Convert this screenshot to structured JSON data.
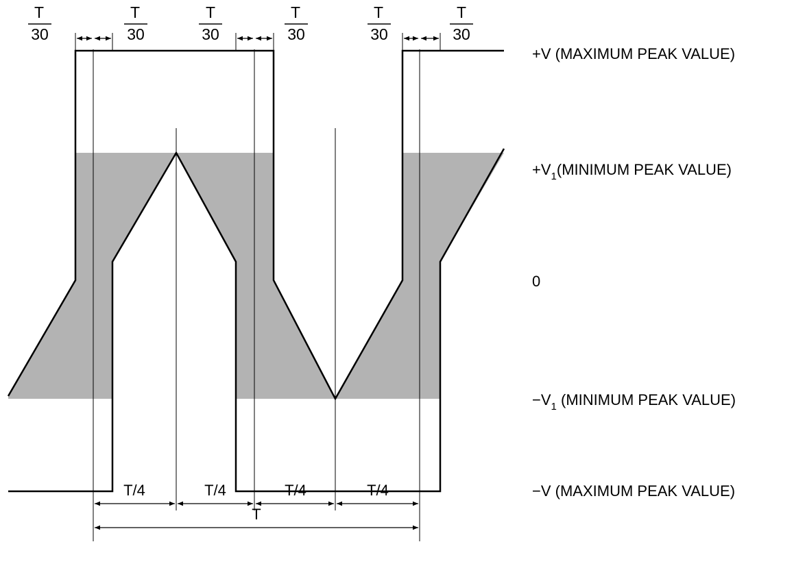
{
  "diagram": {
    "fraction_labels": [
      {
        "numerator": "T",
        "denominator": "30"
      },
      {
        "numerator": "T",
        "denominator": "30"
      },
      {
        "numerator": "T",
        "denominator": "30"
      },
      {
        "numerator": "T",
        "denominator": "30"
      },
      {
        "numerator": "T",
        "denominator": "30"
      },
      {
        "numerator": "T",
        "denominator": "30"
      }
    ],
    "levels": {
      "pos_max": "+V (MAXIMUM PEAK VALUE)",
      "pos_min_prefix": "+V",
      "pos_min_sub": "1",
      "pos_min_suffix": "(MINIMUM PEAK VALUE)",
      "zero": "0",
      "neg_min_prefix": "−V",
      "neg_min_sub": "1",
      "neg_min_suffix": " (MINIMUM PEAK VALUE)",
      "neg_max": "−V (MAXIMUM PEAK VALUE)"
    },
    "quarter_labels": [
      "T/4",
      "T/4",
      "T/4",
      "T/4"
    ],
    "period_label": "T",
    "colors": {
      "line": "#000000",
      "tolerance_fill": "#b3b3b3",
      "background": "#ffffff"
    }
  }
}
